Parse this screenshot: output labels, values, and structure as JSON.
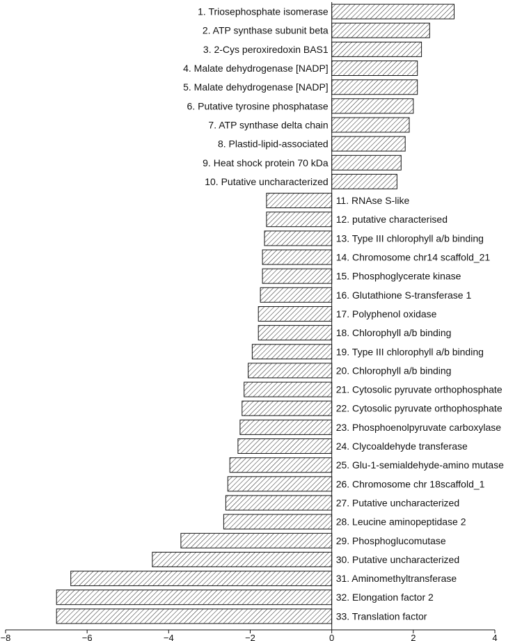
{
  "chart_data": {
    "type": "bar",
    "orientation": "horizontal",
    "title": "",
    "xlabel": "",
    "ylabel": "",
    "xlim": [
      -8,
      4
    ],
    "xticks": [
      -8,
      -6,
      -4,
      -2,
      0,
      2,
      4
    ],
    "xtick_labels": [
      "−8",
      "−6",
      "−4",
      "−2",
      "0",
      "2",
      "4"
    ],
    "grid": false,
    "bar_fill": "diagonal hatch",
    "colors": {
      "bar_stroke": "#111111",
      "hatch": "#333333",
      "text": "#111111"
    },
    "categories": [
      "1. Triosephosphate isomerase",
      "2. ATP synthase subunit beta",
      "3. 2-Cys peroxiredoxin BAS1",
      "4. Malate dehydrogenase [NADP]",
      "5. Malate dehydrogenase [NADP]",
      "6. Putative tyrosine phosphatase",
      "7. ATP synthase delta chain",
      "8. Plastid-lipid-associated",
      "9. Heat shock protein 70 kDa",
      "10. Putative uncharacterized",
      "11. RNAse S-like",
      "12. putative characterised",
      "13. Type III chlorophyll a/b binding",
      "14. Chromosome chr14 scaffold_21",
      "15. Phosphoglycerate kinase",
      "16. Glutathione S-transferase 1",
      "17. Polyphenol oxidase",
      "18. Chlorophyll a/b binding",
      "19. Type III chlorophyll a/b binding",
      "20. Chlorophyll a/b binding",
      "21. Cytosolic pyruvate orthophosphate",
      "22. Cytosolic pyruvate orthophosphate",
      "23. Phosphoenolpyruvate carboxylase",
      "24. Clycoaldehyde transferase",
      "25. Glu-1-semialdehyde-amino mutase",
      "26. Chromosome chr 18scaffold_1",
      "27. Putative uncharacterized",
      "28. Leucine aminopeptidase 2",
      "29. Phosphoglucomutase",
      "30. Putative uncharacterized",
      "31. Aminomethyltransferase",
      "32. Elongation factor 2",
      "33. Translation factor"
    ],
    "values": [
      3.0,
      2.4,
      2.2,
      2.1,
      2.1,
      2.0,
      1.9,
      1.8,
      1.7,
      1.6,
      -1.6,
      -1.6,
      -1.65,
      -1.7,
      -1.7,
      -1.75,
      -1.8,
      -1.8,
      -1.95,
      -2.05,
      -2.15,
      -2.2,
      -2.25,
      -2.3,
      -2.5,
      -2.55,
      -2.6,
      -2.65,
      -3.7,
      -4.4,
      -6.4,
      -6.75,
      -6.75
    ]
  }
}
